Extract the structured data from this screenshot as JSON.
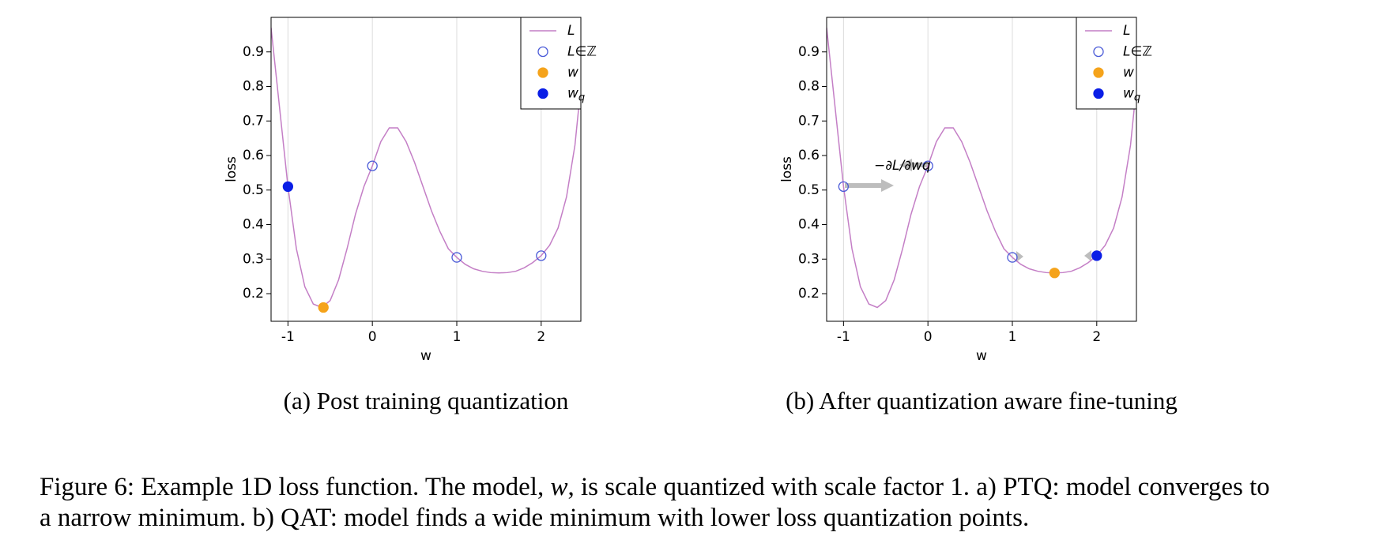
{
  "chart_data": [
    {
      "type": "line",
      "caption": "(a) Post training quantization",
      "xlabel": "w",
      "ylabel": "loss",
      "x": [
        -1.2,
        -1.1,
        -1.0,
        -0.9,
        -0.8,
        -0.7,
        -0.6,
        -0.5,
        -0.4,
        -0.3,
        -0.2,
        -0.1,
        0,
        0.1,
        0.2,
        0.3,
        0.4,
        0.5,
        0.6,
        0.7,
        0.8,
        0.9,
        1.0,
        1.1,
        1.2,
        1.3,
        1.4,
        1.5,
        1.6,
        1.7,
        1.8,
        1.9,
        2.0,
        2.1,
        2.2,
        2.3,
        2.4,
        2.47
      ],
      "xlim": [
        -1.2,
        2.47
      ],
      "ylim": [
        0.12,
        1.0
      ],
      "xticks": [
        -1,
        0,
        1,
        2
      ],
      "yticks": [
        0.2,
        0.3,
        0.4,
        0.5,
        0.6,
        0.7,
        0.8,
        0.9
      ],
      "grid": "x",
      "series": [
        {
          "name": "L",
          "color": "#c47fc6",
          "values": [
            0.97,
            0.74,
            0.51,
            0.33,
            0.22,
            0.17,
            0.16,
            0.18,
            0.24,
            0.33,
            0.43,
            0.51,
            0.57,
            0.64,
            0.68,
            0.68,
            0.64,
            0.58,
            0.51,
            0.44,
            0.38,
            0.33,
            0.305,
            0.285,
            0.272,
            0.265,
            0.261,
            0.26,
            0.261,
            0.265,
            0.275,
            0.29,
            0.31,
            0.34,
            0.39,
            0.48,
            0.63,
            0.8
          ]
        },
        {
          "name": "L∈ℤ",
          "type": "scatter",
          "fill": "none",
          "color": "#4b5bd8",
          "x": [
            0,
            1,
            2
          ],
          "values": [
            0.57,
            0.305,
            0.31
          ]
        },
        {
          "name": "w",
          "type": "scatter",
          "color": "#f5a31b",
          "x": [
            -0.58
          ],
          "values": [
            0.16
          ]
        },
        {
          "name": "wq",
          "type": "scatter",
          "color": "#0a1ee6",
          "x": [
            -1
          ],
          "values": [
            0.51
          ]
        }
      ]
    },
    {
      "type": "line",
      "caption": "(b) After quantization aware fine-tuning",
      "xlabel": "w",
      "ylabel": "loss",
      "annotation": "−∂L/∂wq",
      "x": [
        -1.2,
        -1.1,
        -1.0,
        -0.9,
        -0.8,
        -0.7,
        -0.6,
        -0.5,
        -0.4,
        -0.3,
        -0.2,
        -0.1,
        0,
        0.1,
        0.2,
        0.3,
        0.4,
        0.5,
        0.6,
        0.7,
        0.8,
        0.9,
        1.0,
        1.1,
        1.2,
        1.3,
        1.4,
        1.5,
        1.6,
        1.7,
        1.8,
        1.9,
        2.0,
        2.1,
        2.2,
        2.3,
        2.4,
        2.47
      ],
      "xlim": [
        -1.2,
        2.47
      ],
      "ylim": [
        0.12,
        1.0
      ],
      "xticks": [
        -1,
        0,
        1,
        2
      ],
      "yticks": [
        0.2,
        0.3,
        0.4,
        0.5,
        0.6,
        0.7,
        0.8,
        0.9
      ],
      "grid": "x",
      "series": [
        {
          "name": "L",
          "color": "#c47fc6",
          "values": [
            0.97,
            0.74,
            0.51,
            0.33,
            0.22,
            0.17,
            0.16,
            0.18,
            0.24,
            0.33,
            0.43,
            0.51,
            0.57,
            0.64,
            0.68,
            0.68,
            0.64,
            0.58,
            0.51,
            0.44,
            0.38,
            0.33,
            0.305,
            0.285,
            0.272,
            0.265,
            0.261,
            0.26,
            0.261,
            0.265,
            0.275,
            0.29,
            0.31,
            0.34,
            0.39,
            0.48,
            0.63,
            0.8
          ]
        },
        {
          "name": "L∈ℤ",
          "type": "scatter",
          "fill": "none",
          "color": "#4b5bd8",
          "x": [
            -1,
            0,
            1
          ],
          "values": [
            0.51,
            0.57,
            0.305
          ]
        },
        {
          "name": "w",
          "type": "scatter",
          "color": "#f5a31b",
          "x": [
            1.5
          ],
          "values": [
            0.26
          ]
        },
        {
          "name": "wq",
          "type": "scatter",
          "color": "#0a1ee6",
          "x": [
            2
          ],
          "values": [
            0.31
          ]
        }
      ]
    }
  ],
  "figure_caption": {
    "line1": [
      "Figure 6: Example 1D loss function. The model, ",
      "w",
      ", is scale quantized with scale factor 1. a) PTQ: model converges to"
    ],
    "line2": "a narrow minimum. b) QAT: model finds a wide minimum with lower loss quantization points."
  }
}
